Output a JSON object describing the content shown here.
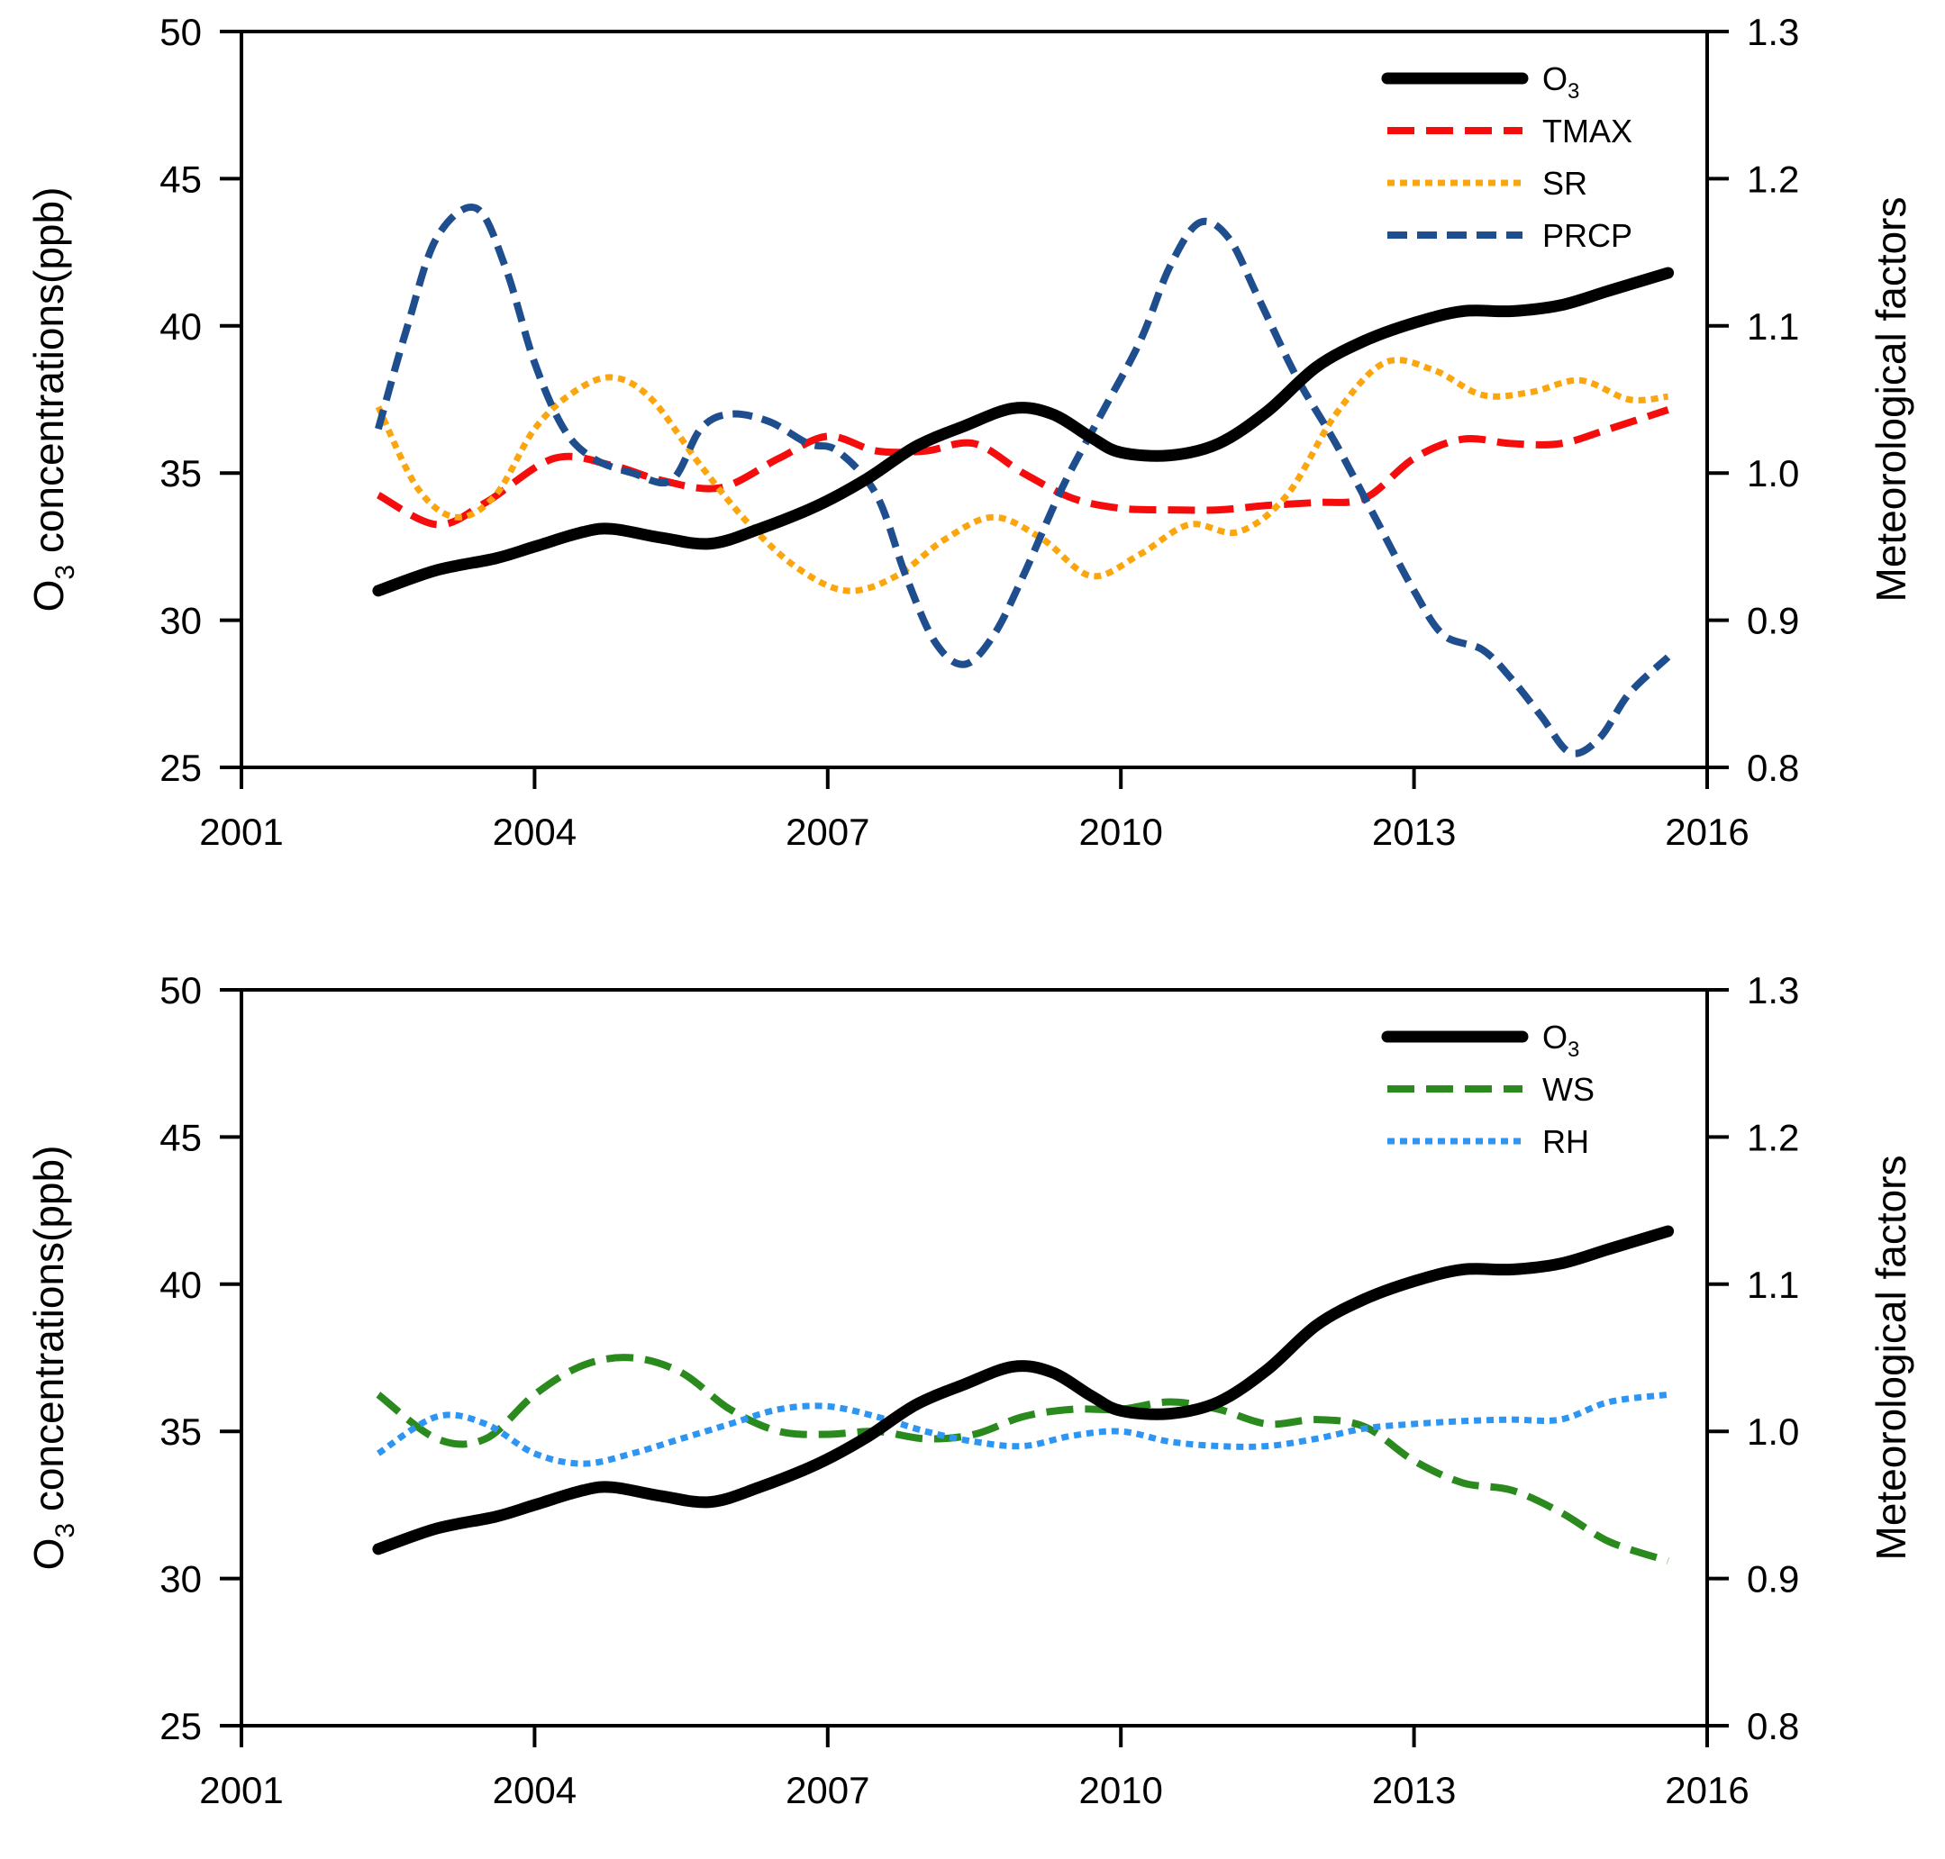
{
  "chart_data": [
    {
      "type": "line",
      "panel": "top",
      "title": "",
      "xlabel": "",
      "ylabel": {
        "prefix": "O",
        "sub": "3",
        "suffix": " concentrations(ppb)"
      },
      "y2label": "Meteorological factors",
      "xlim": [
        2001,
        2016
      ],
      "ylim": [
        25,
        50
      ],
      "y2lim": [
        0.8,
        1.3
      ],
      "xticks": [
        "2001",
        "2004",
        "2007",
        "2010",
        "2013",
        "2016"
      ],
      "yticks": [
        "25",
        "30",
        "35",
        "40",
        "45",
        "50"
      ],
      "y2ticks": [
        "0.8",
        "0.9",
        "1.0",
        "1.1",
        "1.2",
        "1.3"
      ],
      "legend_position": "top-right",
      "series": [
        {
          "name": "O3",
          "label": "O",
          "label_sub": "3",
          "axis": "left",
          "color": "#000000",
          "style": "solid",
          "x": [
            2002.4,
            2003.0,
            2003.6,
            2004.0,
            2004.5,
            2004.8,
            2005.3,
            2005.8,
            2006.3,
            2006.9,
            2007.4,
            2007.9,
            2008.4,
            2008.9,
            2009.3,
            2009.7,
            2010.0,
            2010.5,
            2011.0,
            2011.5,
            2012.0,
            2012.5,
            2013.0,
            2013.5,
            2014.0,
            2014.5,
            2015.0,
            2015.6
          ],
          "values": [
            31.0,
            31.7,
            32.1,
            32.5,
            33.0,
            33.1,
            32.8,
            32.6,
            33.1,
            33.9,
            34.8,
            35.9,
            36.6,
            37.2,
            37.0,
            36.2,
            35.7,
            35.6,
            36.0,
            37.1,
            38.6,
            39.5,
            40.1,
            40.5,
            40.5,
            40.7,
            41.2,
            41.8
          ]
        },
        {
          "name": "TMAX",
          "label": "TMAX",
          "axis": "right",
          "color": "#f50d0d",
          "style": "longdash",
          "x": [
            2002.4,
            2003.0,
            2003.5,
            2004.2,
            2004.8,
            2005.3,
            2005.9,
            2006.5,
            2007.0,
            2007.5,
            2008.0,
            2008.5,
            2009.0,
            2009.5,
            2010.0,
            2010.5,
            2011.0,
            2011.5,
            2012.0,
            2012.5,
            2013.0,
            2013.5,
            2014.0,
            2014.5,
            2015.0,
            2015.6
          ],
          "values": [
            0.985,
            0.965,
            0.98,
            1.01,
            1.005,
            0.995,
            0.99,
            1.01,
            1.025,
            1.015,
            1.015,
            1.02,
            1.0,
            0.983,
            0.976,
            0.975,
            0.975,
            0.978,
            0.98,
            0.983,
            1.01,
            1.023,
            1.02,
            1.02,
            1.03,
            1.043
          ]
        },
        {
          "name": "SR",
          "label": "SR",
          "axis": "right",
          "color": "#fca60f",
          "style": "dotted",
          "x": [
            2002.4,
            2002.8,
            2003.2,
            2003.6,
            2004.0,
            2004.4,
            2004.8,
            2005.2,
            2005.7,
            2006.2,
            2006.7,
            2007.2,
            2007.7,
            2008.2,
            2008.7,
            2009.2,
            2009.7,
            2010.2,
            2010.7,
            2011.2,
            2011.7,
            2012.2,
            2012.7,
            2013.2,
            2013.7,
            2014.2,
            2014.7,
            2015.2,
            2015.6
          ],
          "values": [
            1.045,
            0.99,
            0.97,
            0.985,
            1.03,
            1.055,
            1.065,
            1.05,
            1.005,
            0.965,
            0.935,
            0.92,
            0.93,
            0.955,
            0.97,
            0.955,
            0.93,
            0.945,
            0.965,
            0.96,
            0.985,
            1.04,
            1.075,
            1.07,
            1.053,
            1.055,
            1.063,
            1.05,
            1.052
          ]
        },
        {
          "name": "PRCP",
          "label": "PRCP",
          "axis": "right",
          "color": "#1f4e8f",
          "style": "dashed",
          "x": [
            2002.4,
            2002.7,
            2003.0,
            2003.4,
            2003.7,
            2004.0,
            2004.3,
            2004.6,
            2005.0,
            2005.4,
            2005.7,
            2006.0,
            2006.4,
            2006.8,
            2007.1,
            2007.5,
            2007.8,
            2008.1,
            2008.4,
            2008.7,
            2009.0,
            2009.4,
            2009.8,
            2010.2,
            2010.5,
            2010.8,
            2011.1,
            2011.4,
            2011.8,
            2012.2,
            2012.6,
            2013.0,
            2013.3,
            2013.7,
            2014.0,
            2014.3,
            2014.6,
            2014.9,
            2015.2,
            2015.6
          ],
          "values": [
            1.03,
            1.1,
            1.16,
            1.18,
            1.14,
            1.075,
            1.03,
            1.01,
            1.0,
            0.995,
            1.03,
            1.04,
            1.035,
            1.02,
            1.015,
            0.985,
            0.93,
            0.885,
            0.87,
            0.89,
            0.93,
            0.99,
            1.04,
            1.09,
            1.14,
            1.17,
            1.16,
            1.12,
            1.065,
            1.02,
            0.97,
            0.92,
            0.89,
            0.88,
            0.86,
            0.835,
            0.81,
            0.82,
            0.85,
            0.875
          ]
        }
      ]
    },
    {
      "type": "line",
      "panel": "bottom",
      "title": "",
      "xlabel": "",
      "ylabel": {
        "prefix": "O",
        "sub": "3",
        "suffix": " concentrations(ppb)"
      },
      "y2label": "Meteorological factors",
      "xlim": [
        2001,
        2016
      ],
      "ylim": [
        25,
        50
      ],
      "y2lim": [
        0.8,
        1.3
      ],
      "xticks": [
        "2001",
        "2004",
        "2007",
        "2010",
        "2013",
        "2016"
      ],
      "yticks": [
        "25",
        "30",
        "35",
        "40",
        "45",
        "50"
      ],
      "y2ticks": [
        "0.8",
        "0.9",
        "1.0",
        "1.1",
        "1.2",
        "1.3"
      ],
      "legend_position": "top-right",
      "series": [
        {
          "name": "O3",
          "label": "O",
          "label_sub": "3",
          "axis": "left",
          "color": "#000000",
          "style": "solid",
          "x": [
            2002.4,
            2003.0,
            2003.6,
            2004.0,
            2004.5,
            2004.8,
            2005.3,
            2005.8,
            2006.3,
            2006.9,
            2007.4,
            2007.9,
            2008.4,
            2008.9,
            2009.3,
            2009.7,
            2010.0,
            2010.5,
            2011.0,
            2011.5,
            2012.0,
            2012.5,
            2013.0,
            2013.5,
            2014.0,
            2014.5,
            2015.0,
            2015.6
          ],
          "values": [
            31.0,
            31.7,
            32.1,
            32.5,
            33.0,
            33.1,
            32.8,
            32.6,
            33.1,
            33.9,
            34.8,
            35.9,
            36.6,
            37.2,
            37.0,
            36.2,
            35.7,
            35.6,
            36.0,
            37.1,
            38.6,
            39.5,
            40.1,
            40.5,
            40.5,
            40.7,
            41.2,
            41.8
          ]
        },
        {
          "name": "WS",
          "label": "WS",
          "axis": "right",
          "color": "#2a8a1e",
          "style": "longdash",
          "x": [
            2002.4,
            2003.0,
            2003.5,
            2004.0,
            2004.5,
            2005.0,
            2005.5,
            2006.0,
            2006.5,
            2007.0,
            2007.5,
            2008.0,
            2008.5,
            2009.0,
            2009.5,
            2010.0,
            2010.5,
            2011.0,
            2011.5,
            2012.0,
            2012.5,
            2013.0,
            2013.5,
            2014.0,
            2014.5,
            2015.0,
            2015.6
          ],
          "values": [
            1.025,
            0.995,
            0.995,
            1.025,
            1.045,
            1.05,
            1.04,
            1.015,
            1.0,
            0.998,
            1.0,
            0.995,
            0.998,
            1.01,
            1.015,
            1.015,
            1.02,
            1.015,
            1.005,
            1.008,
            1.003,
            0.98,
            0.965,
            0.96,
            0.945,
            0.925,
            0.912
          ]
        },
        {
          "name": "RH",
          "label": "RH",
          "axis": "right",
          "color": "#2e96f2",
          "style": "dotted",
          "x": [
            2002.4,
            2003.0,
            2003.5,
            2004.0,
            2004.5,
            2005.0,
            2005.5,
            2006.0,
            2006.5,
            2007.0,
            2007.5,
            2008.0,
            2008.5,
            2009.0,
            2009.5,
            2010.0,
            2010.5,
            2011.0,
            2011.5,
            2012.0,
            2012.5,
            2013.0,
            2013.5,
            2014.0,
            2014.5,
            2015.0,
            2015.6
          ],
          "values": [
            0.985,
            1.01,
            1.005,
            0.985,
            0.978,
            0.985,
            0.995,
            1.005,
            1.015,
            1.017,
            1.01,
            1.0,
            0.993,
            0.99,
            0.997,
            1.0,
            0.993,
            0.99,
            0.99,
            0.995,
            1.002,
            1.005,
            1.007,
            1.008,
            1.008,
            1.02,
            1.025
          ]
        }
      ]
    }
  ]
}
